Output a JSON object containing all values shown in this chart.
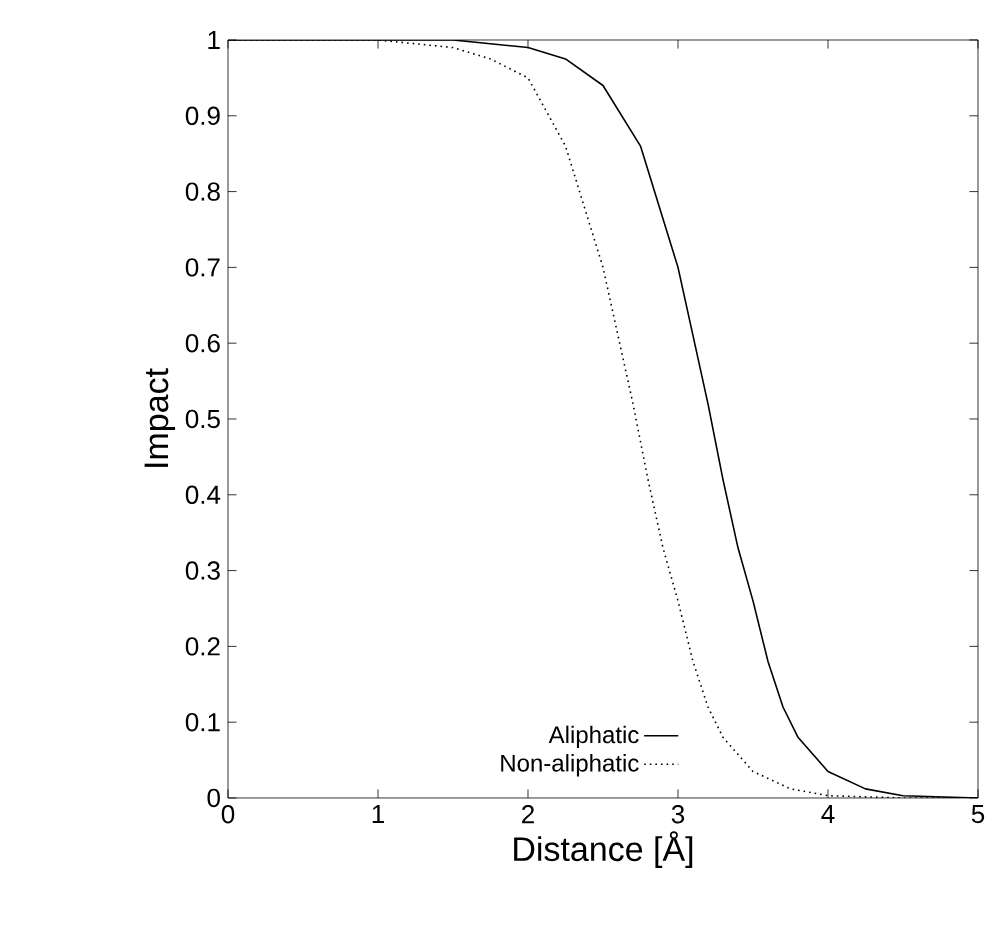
{
  "chart_data": {
    "type": "line",
    "xlabel": "Distance [Å]",
    "ylabel": "Impact",
    "xlim": [
      0,
      5
    ],
    "ylim": [
      0,
      1
    ],
    "xticks": [
      0,
      1,
      2,
      3,
      4,
      5
    ],
    "yticks": [
      0,
      0.1,
      0.2,
      0.3,
      0.4,
      0.5,
      0.6,
      0.7,
      0.8,
      0.9,
      1
    ],
    "grid": false,
    "legend": "bottom right",
    "marker": "none",
    "series": [
      {
        "name": "Aliphatic",
        "color": "#000000",
        "line_style": "solid",
        "x": [
          0,
          1,
          1.5,
          2,
          2.25,
          2.5,
          2.75,
          3,
          3.1,
          3.2,
          3.3,
          3.4,
          3.5,
          3.6,
          3.7,
          3.8,
          4,
          4.25,
          4.5,
          5
        ],
        "values": [
          1,
          1,
          1,
          0.99,
          0.975,
          0.94,
          0.86,
          0.7,
          0.61,
          0.52,
          0.42,
          0.33,
          0.26,
          0.18,
          0.12,
          0.08,
          0.035,
          0.012,
          0.003,
          0
        ]
      },
      {
        "name": "Non-aliphatic",
        "color": "#000000",
        "line_style": "dotted",
        "x": [
          0,
          1,
          1.5,
          1.75,
          2,
          2.25,
          2.5,
          2.6,
          2.7,
          2.8,
          2.9,
          3,
          3.1,
          3.2,
          3.3,
          3.5,
          3.75,
          4,
          4.5,
          5
        ],
        "values": [
          1,
          1,
          0.99,
          0.975,
          0.95,
          0.86,
          0.7,
          0.61,
          0.52,
          0.42,
          0.33,
          0.26,
          0.18,
          0.12,
          0.08,
          0.035,
          0.012,
          0.003,
          0,
          0
        ]
      }
    ]
  }
}
